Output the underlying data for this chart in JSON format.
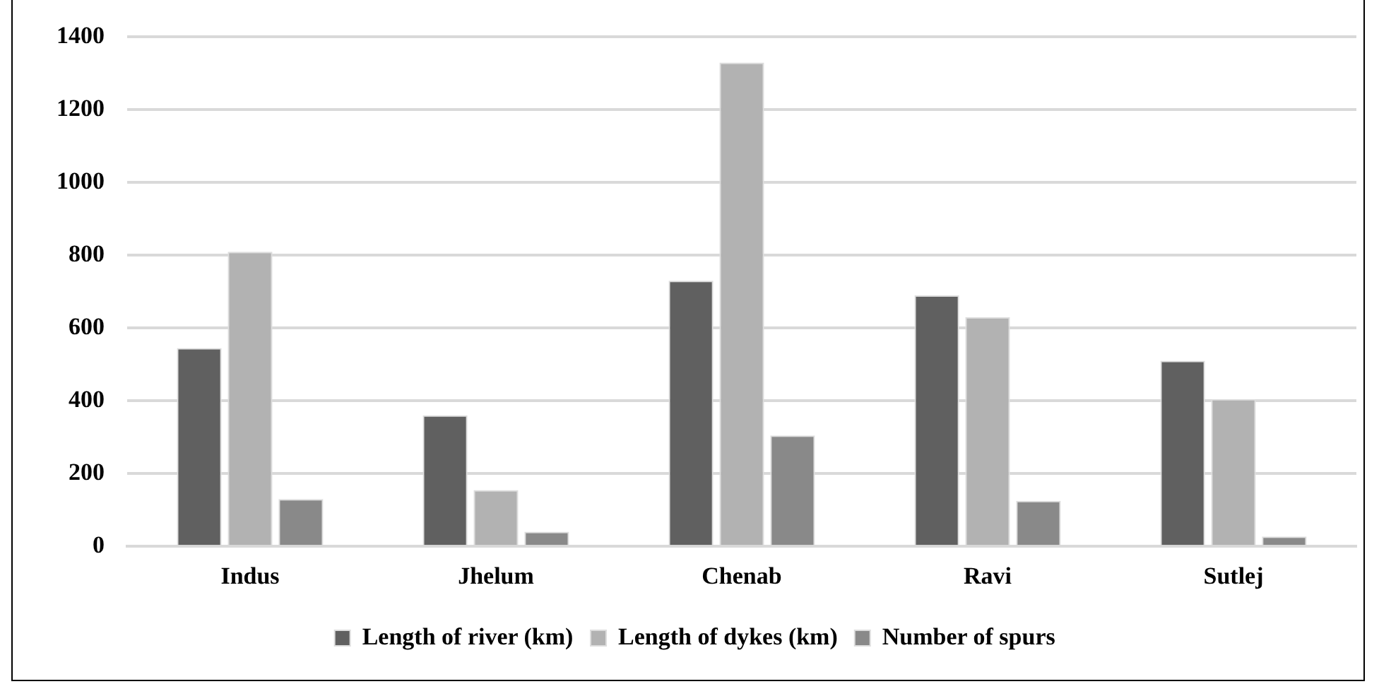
{
  "chart_data": {
    "type": "bar",
    "categories": [
      "Indus",
      "Jhelum",
      "Chenab",
      "Ravi",
      "Sutlej"
    ],
    "series": [
      {
        "name": "Length of river (km)",
        "color": "#606060",
        "values": [
          545,
          360,
          730,
          690,
          510
        ]
      },
      {
        "name": "Length of dykes (km)",
        "color": "#b2b2b2",
        "values": [
          810,
          155,
          1330,
          630,
          405
        ]
      },
      {
        "name": "Number of spurs",
        "color": "#898989",
        "values": [
          130,
          40,
          305,
          125,
          27
        ]
      }
    ],
    "ylim": [
      0,
      1400
    ],
    "yticks": [
      0,
      200,
      400,
      600,
      800,
      1000,
      1200,
      1400
    ],
    "grid": "y",
    "legend": "bottom"
  }
}
